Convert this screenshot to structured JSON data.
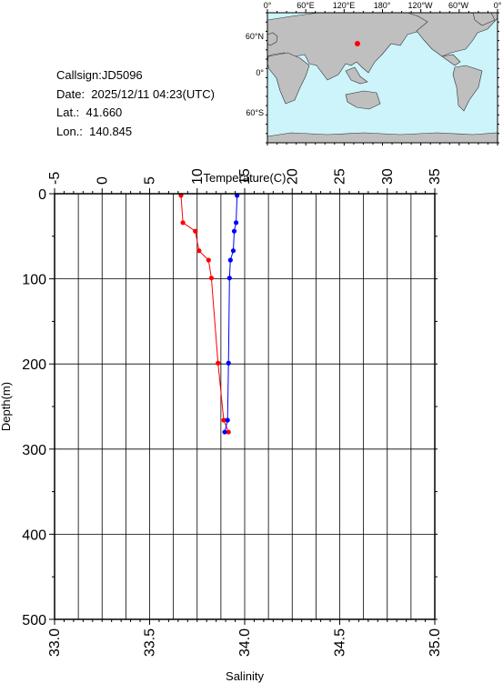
{
  "station": {
    "callsign": "Callsign:JD5096",
    "date": "Date:  2025/12/11 04:23(UTC)",
    "lat": "Lat.:  41.660",
    "lon": "Lon.:  140.845"
  },
  "map": {
    "top_labels": [
      "0°",
      "60°E",
      "120°E",
      "180°",
      "120°W",
      "60°W",
      "0°"
    ],
    "left_labels": [
      "60°N",
      "0°",
      "60°S"
    ],
    "station_marker": {
      "lon": 140.845,
      "lat": 41.66
    },
    "ocean_color": "#ccf4fa",
    "land_color": "#bfbfbf",
    "marker_color": "#ff0000"
  },
  "chart_data": {
    "type": "line",
    "title": "",
    "ylabel": "Depth(m)",
    "x_top_label": "Temperature(C)",
    "x_bottom_label": "Salinity",
    "ylim": [
      500,
      0
    ],
    "temperature_xlim": [
      -5,
      35
    ],
    "salinity_xlim": [
      33.0,
      35.0
    ],
    "y_ticks": [
      "0",
      "100",
      "200",
      "300",
      "400",
      "500"
    ],
    "temperature_ticks": [
      "-5",
      "0",
      "5",
      "10",
      "15",
      "20",
      "25",
      "30",
      "35"
    ],
    "salinity_ticks": [
      "33.0",
      "33.5",
      "34.0",
      "34.5",
      "35.0"
    ],
    "grid": true,
    "series": [
      {
        "name": "Temperature(C)",
        "color": "#ff0000",
        "axis": "top",
        "points": [
          {
            "depth": 2,
            "value": 8.3
          },
          {
            "depth": 34,
            "value": 8.5
          },
          {
            "depth": 44,
            "value": 9.8
          },
          {
            "depth": 67,
            "value": 10.2
          },
          {
            "depth": 78,
            "value": 11.2
          },
          {
            "depth": 99,
            "value": 11.5
          },
          {
            "depth": 199,
            "value": 12.2
          },
          {
            "depth": 266,
            "value": 12.8
          },
          {
            "depth": 280,
            "value": 13.3
          }
        ]
      },
      {
        "name": "Salinity",
        "color": "#0000ff",
        "axis": "bottom",
        "points": [
          {
            "depth": 2,
            "value": 33.96
          },
          {
            "depth": 34,
            "value": 33.955
          },
          {
            "depth": 44,
            "value": 33.945
          },
          {
            "depth": 67,
            "value": 33.94
          },
          {
            "depth": 78,
            "value": 33.925
          },
          {
            "depth": 99,
            "value": 33.92
          },
          {
            "depth": 199,
            "value": 33.915
          },
          {
            "depth": 266,
            "value": 33.91
          },
          {
            "depth": 280,
            "value": 33.895
          }
        ]
      }
    ]
  }
}
